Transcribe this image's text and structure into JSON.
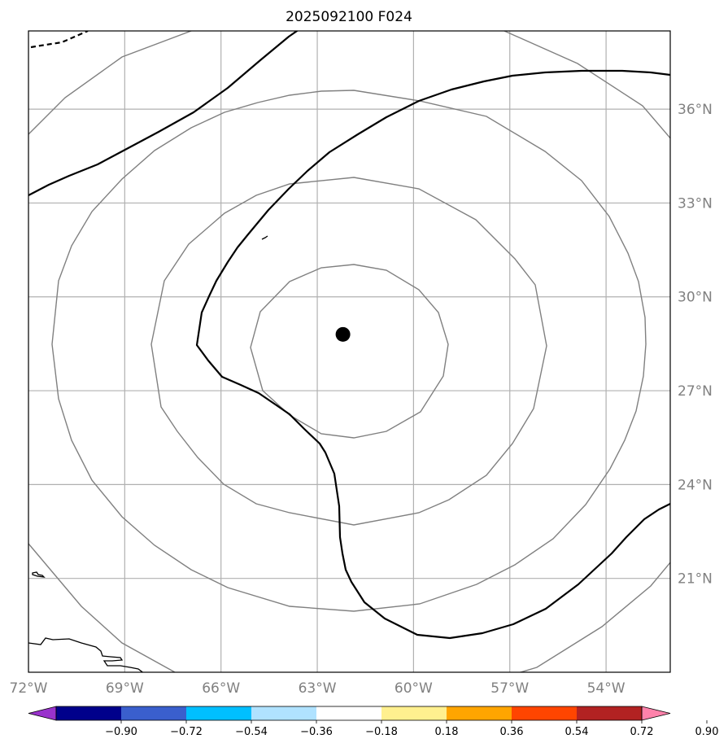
{
  "title": "2025092100 F024",
  "map": {
    "lon_range": [
      -72,
      -52
    ],
    "lat_range": [
      18,
      38.5
    ],
    "lon_ticks": [
      {
        "value": -72,
        "label": "72°W"
      },
      {
        "value": -69,
        "label": "69°W"
      },
      {
        "value": -66,
        "label": "66°W"
      },
      {
        "value": -63,
        "label": "63°W"
      },
      {
        "value": -60,
        "label": "60°W"
      },
      {
        "value": -57,
        "label": "57°W"
      },
      {
        "value": -54,
        "label": "54°W"
      }
    ],
    "lat_ticks": [
      {
        "value": 21,
        "label": "21°N"
      },
      {
        "value": 24,
        "label": "24°N"
      },
      {
        "value": 27,
        "label": "27°N"
      },
      {
        "value": 30,
        "label": "30°N"
      },
      {
        "value": 33,
        "label": "33°N"
      },
      {
        "value": 36,
        "label": "36°N"
      }
    ],
    "storm_center": {
      "lon": -62.2,
      "lat": 28.8
    },
    "gridlines": true
  },
  "colorbar": {
    "colors": [
      "#9932cc",
      "#00008b",
      "#3a5fcd",
      "#00bfff",
      "#b0e2ff",
      "#ffffff",
      "#fff08f",
      "#ffa500",
      "#ff4500",
      "#b22222",
      "#ff82ab"
    ],
    "labels": [
      "−0.90",
      "−0.72",
      "−0.54",
      "−0.36",
      "−0.18",
      "0.18",
      "0.36",
      "0.54",
      "0.72",
      "0.90"
    ]
  },
  "colors": {
    "contour": "#000000",
    "range_rings": "#808080",
    "grid": "#b0b0b0"
  }
}
